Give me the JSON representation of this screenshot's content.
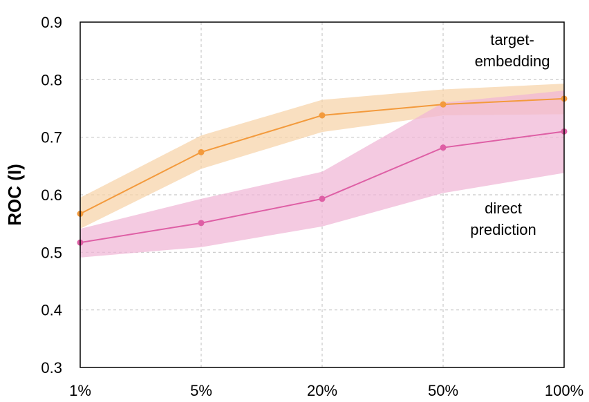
{
  "chart_data": {
    "type": "line",
    "categories": [
      "1%",
      "5%",
      "20%",
      "50%",
      "100%"
    ],
    "ylabel": "ROC (I)",
    "ylim": [
      0.3,
      0.9
    ],
    "yticks": [
      "0.3",
      "0.4",
      "0.5",
      "0.6",
      "0.7",
      "0.8",
      "0.9"
    ],
    "grid": true,
    "series": [
      {
        "name": "target-embedding",
        "color": "#f39a3c",
        "band_color": "#f6d3a8",
        "values": [
          0.567,
          0.674,
          0.738,
          0.757,
          0.767
        ],
        "lower": [
          0.541,
          0.645,
          0.709,
          0.738,
          0.74
        ],
        "upper": [
          0.595,
          0.703,
          0.765,
          0.783,
          0.793
        ]
      },
      {
        "name": "direct prediction",
        "color": "#de5fa5",
        "band_color": "#f0b6d5",
        "values": [
          0.517,
          0.551,
          0.593,
          0.682,
          0.71
        ],
        "lower": [
          0.491,
          0.509,
          0.545,
          0.603,
          0.638
        ],
        "upper": [
          0.541,
          0.593,
          0.64,
          0.76,
          0.781
        ]
      }
    ],
    "annotations": [
      {
        "lines": [
          "target-",
          "embedding"
        ],
        "series": "target-embedding"
      },
      {
        "lines": [
          "direct",
          "prediction"
        ],
        "series": "direct prediction"
      }
    ]
  }
}
